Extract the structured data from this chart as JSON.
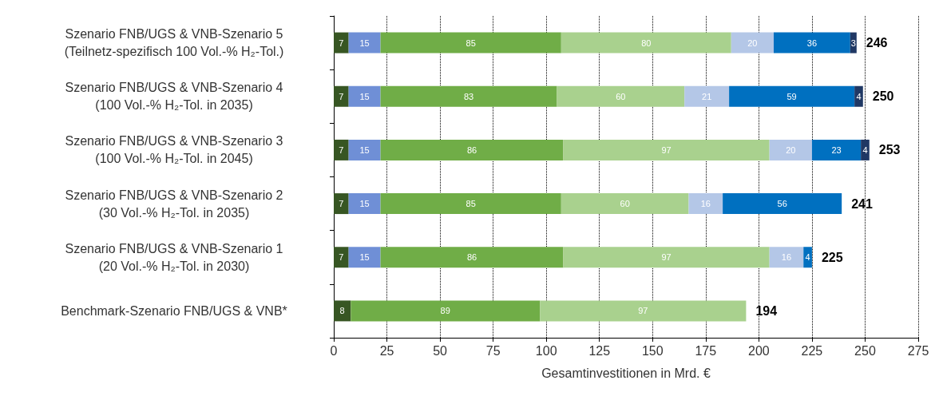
{
  "chart_data": {
    "type": "bar",
    "orientation": "horizontal",
    "stacked": true,
    "xlabel": "Gesamtinvestitionen in Mrd. €",
    "categories": [
      "Szenario FNB/UGS & VNB-Szenario 5\n(Teilnetz-spezifisch 100 Vol.-% H₂-Tol.)",
      "Szenario FNB/UGS & VNB-Szenario 4\n(100 Vol.-% H₂-Tol. in 2035)",
      "Szenario FNB/UGS & VNB-Szenario 3\n(100 Vol.-% H₂-Tol. in 2045)",
      "Szenario FNB/UGS & VNB-Szenario 2\n(30 Vol.-% H₂-Tol. in 2035)",
      "Szenario FNB/UGS & VNB-Szenario 1\n(20 Vol.-% H₂-Tol. in 2030)",
      "Benchmark-Szenario FNB/UGS & VNB*"
    ],
    "series": [
      {
        "color": "#375623",
        "values": [
          7,
          7,
          7,
          7,
          7,
          8
        ]
      },
      {
        "color": "#6f8fd6",
        "values": [
          15,
          15,
          15,
          15,
          15,
          null
        ]
      },
      {
        "color": "#70ad47",
        "values": [
          85,
          83,
          86,
          85,
          86,
          89
        ]
      },
      {
        "color": "#a9d18e",
        "values": [
          80,
          60,
          97,
          60,
          97,
          97
        ]
      },
      {
        "color": "#b4c7e7",
        "values": [
          20,
          21,
          20,
          16,
          16,
          null
        ]
      },
      {
        "color": "#0070c0",
        "values": [
          36,
          59,
          23,
          56,
          4,
          null
        ]
      },
      {
        "color": "#203864",
        "values": [
          3,
          4,
          4,
          null,
          null,
          null
        ]
      }
    ],
    "totals": [
      "246",
      "250",
      "253",
      "241",
      "225",
      "194"
    ],
    "data_labels": true,
    "xlim": [
      0,
      275
    ],
    "xticks": [
      0,
      25,
      50,
      75,
      100,
      125,
      150,
      175,
      200,
      225,
      250,
      275
    ],
    "grid": "x"
  }
}
